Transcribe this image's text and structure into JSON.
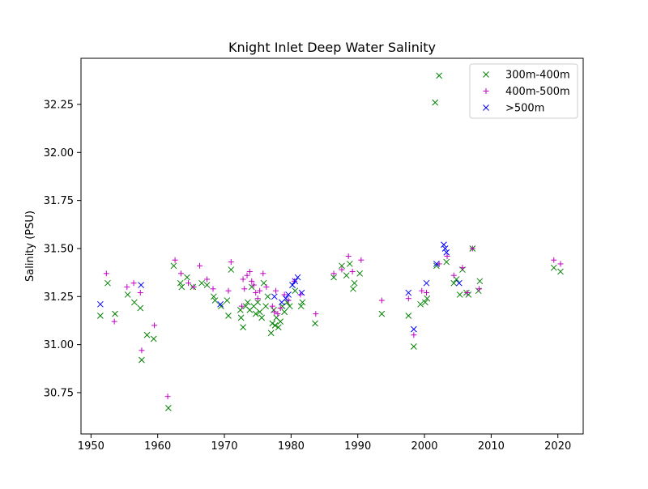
{
  "chart_data": {
    "type": "scatter",
    "title": "Knight Inlet Deep Water Salinity",
    "xlabel": "",
    "ylabel": "Salinity (PSU)",
    "xlim": [
      1948.5,
      2023.8
    ],
    "ylim": [
      30.535,
      32.49
    ],
    "xticks": [
      1950,
      1960,
      1970,
      1980,
      1990,
      2000,
      2010,
      2020
    ],
    "yticks": [
      30.75,
      31.0,
      31.25,
      31.5,
      31.75,
      32.0,
      32.25
    ],
    "ytick_labels": [
      "30.75",
      "31.00",
      "31.25",
      "31.50",
      "31.75",
      "32.00",
      "32.25"
    ],
    "grid": false,
    "legend_position": "top-right",
    "series": [
      {
        "name": "300m-400m",
        "marker": "x",
        "color": "#008000",
        "points": [
          [
            1951.4,
            31.15
          ],
          [
            1952.5,
            31.32
          ],
          [
            1953.6,
            31.16
          ],
          [
            1955.5,
            31.26
          ],
          [
            1956.5,
            31.22
          ],
          [
            1957.4,
            31.19
          ],
          [
            1957.6,
            30.92
          ],
          [
            1958.4,
            31.05
          ],
          [
            1959.4,
            31.03
          ],
          [
            1961.6,
            30.67
          ],
          [
            1962.4,
            31.41
          ],
          [
            1963.4,
            31.32
          ],
          [
            1963.6,
            31.3
          ],
          [
            1964.4,
            31.35
          ],
          [
            1965.3,
            31.3
          ],
          [
            1966.6,
            31.32
          ],
          [
            1967.4,
            31.31
          ],
          [
            1968.4,
            31.25
          ],
          [
            1968.6,
            31.23
          ],
          [
            1969.5,
            31.2
          ],
          [
            1970.4,
            31.23
          ],
          [
            1970.6,
            31.15
          ],
          [
            1971.0,
            31.39
          ],
          [
            1972.4,
            31.18
          ],
          [
            1972.5,
            31.14
          ],
          [
            1972.8,
            31.09
          ],
          [
            1973.2,
            31.2
          ],
          [
            1973.5,
            31.22
          ],
          [
            1973.8,
            31.18
          ],
          [
            1974.1,
            31.3
          ],
          [
            1974.4,
            31.2
          ],
          [
            1974.7,
            31.16
          ],
          [
            1975.0,
            31.22
          ],
          [
            1975.3,
            31.17
          ],
          [
            1975.6,
            31.14
          ],
          [
            1975.9,
            31.32
          ],
          [
            1976.2,
            31.2
          ],
          [
            1976.5,
            31.25
          ],
          [
            1977.0,
            31.06
          ],
          [
            1977.2,
            31.11
          ],
          [
            1977.4,
            31.18
          ],
          [
            1977.6,
            31.1
          ],
          [
            1977.8,
            31.14
          ],
          [
            1978.1,
            31.09
          ],
          [
            1978.4,
            31.12
          ],
          [
            1978.7,
            31.2
          ],
          [
            1979.0,
            31.17
          ],
          [
            1979.4,
            31.22
          ],
          [
            1979.8,
            31.2
          ],
          [
            1980.2,
            31.31
          ],
          [
            1980.6,
            31.28
          ],
          [
            1981.5,
            31.2
          ],
          [
            1981.7,
            31.22
          ],
          [
            1983.6,
            31.11
          ],
          [
            1986.4,
            31.35
          ],
          [
            1987.6,
            31.41
          ],
          [
            1988.3,
            31.36
          ],
          [
            1988.8,
            31.42
          ],
          [
            1989.3,
            31.29
          ],
          [
            1989.5,
            31.32
          ],
          [
            1990.3,
            31.37
          ],
          [
            1993.6,
            31.16
          ],
          [
            1997.6,
            31.15
          ],
          [
            1998.4,
            30.99
          ],
          [
            1999.4,
            31.21
          ],
          [
            2000.1,
            31.22
          ],
          [
            2000.4,
            31.24
          ],
          [
            2001.6,
            32.26
          ],
          [
            2002.2,
            32.4
          ],
          [
            2001.8,
            31.41
          ],
          [
            2003.3,
            31.43
          ],
          [
            2004.4,
            31.32
          ],
          [
            2004.8,
            31.34
          ],
          [
            2005.3,
            31.26
          ],
          [
            2005.7,
            31.39
          ],
          [
            2006.3,
            31.27
          ],
          [
            2006.6,
            31.26
          ],
          [
            2007.2,
            31.5
          ],
          [
            2008.1,
            31.28
          ],
          [
            2008.3,
            31.33
          ],
          [
            2019.4,
            31.4
          ],
          [
            2020.4,
            31.38
          ]
        ]
      },
      {
        "name": "400m-500m",
        "marker": "+",
        "color": "#bf00bf",
        "points": [
          [
            1952.3,
            31.37
          ],
          [
            1953.5,
            31.12
          ],
          [
            1955.4,
            31.3
          ],
          [
            1956.4,
            31.32
          ],
          [
            1957.4,
            31.27
          ],
          [
            1957.6,
            30.97
          ],
          [
            1959.5,
            31.1
          ],
          [
            1961.5,
            30.73
          ],
          [
            1962.6,
            31.44
          ],
          [
            1963.5,
            31.37
          ],
          [
            1964.6,
            31.32
          ],
          [
            1965.4,
            31.3
          ],
          [
            1966.3,
            31.41
          ],
          [
            1967.4,
            31.34
          ],
          [
            1968.3,
            31.29
          ],
          [
            1970.6,
            31.28
          ],
          [
            1971.0,
            31.43
          ],
          [
            1972.6,
            31.2
          ],
          [
            1972.8,
            31.34
          ],
          [
            1973.0,
            31.29
          ],
          [
            1973.4,
            31.36
          ],
          [
            1973.8,
            31.38
          ],
          [
            1974.1,
            31.33
          ],
          [
            1974.4,
            31.31
          ],
          [
            1974.7,
            31.27
          ],
          [
            1975.0,
            31.24
          ],
          [
            1975.3,
            31.28
          ],
          [
            1975.8,
            31.37
          ],
          [
            1976.3,
            31.3
          ],
          [
            1977.2,
            31.2
          ],
          [
            1977.5,
            31.17
          ],
          [
            1977.7,
            31.28
          ],
          [
            1978.0,
            31.16
          ],
          [
            1978.4,
            31.19
          ],
          [
            1979.0,
            31.26
          ],
          [
            1979.6,
            31.23
          ],
          [
            1980.5,
            31.33
          ],
          [
            1981.4,
            31.26
          ],
          [
            1983.7,
            31.16
          ],
          [
            1986.4,
            31.37
          ],
          [
            1987.6,
            31.39
          ],
          [
            1988.6,
            31.46
          ],
          [
            1989.2,
            31.38
          ],
          [
            1990.5,
            31.44
          ],
          [
            1993.6,
            31.23
          ],
          [
            1997.6,
            31.24
          ],
          [
            1998.4,
            31.05
          ],
          [
            1999.6,
            31.28
          ],
          [
            2000.3,
            31.27
          ],
          [
            2002.2,
            31.42
          ],
          [
            2003.4,
            31.46
          ],
          [
            2004.4,
            31.36
          ],
          [
            2005.7,
            31.4
          ],
          [
            2006.4,
            31.27
          ],
          [
            2007.2,
            31.5
          ],
          [
            2008.2,
            31.29
          ],
          [
            2019.4,
            31.44
          ],
          [
            2020.4,
            31.42
          ]
        ]
      },
      {
        "name": ">500m",
        "marker": "x",
        "color": "#0000ff",
        "points": [
          [
            1951.4,
            31.21
          ],
          [
            1957.5,
            31.31
          ],
          [
            1969.4,
            31.21
          ],
          [
            1977.5,
            31.25
          ],
          [
            1978.6,
            31.22
          ],
          [
            1979.2,
            31.24
          ],
          [
            1979.6,
            31.26
          ],
          [
            1980.2,
            31.31
          ],
          [
            1980.6,
            31.33
          ],
          [
            1981.0,
            31.35
          ],
          [
            1981.6,
            31.27
          ],
          [
            1997.6,
            31.27
          ],
          [
            1998.4,
            31.08
          ],
          [
            2000.3,
            31.32
          ],
          [
            2001.8,
            31.42
          ],
          [
            2002.9,
            31.52
          ],
          [
            2003.1,
            31.5
          ],
          [
            2003.3,
            31.48
          ],
          [
            2005.2,
            31.32
          ]
        ]
      }
    ]
  }
}
